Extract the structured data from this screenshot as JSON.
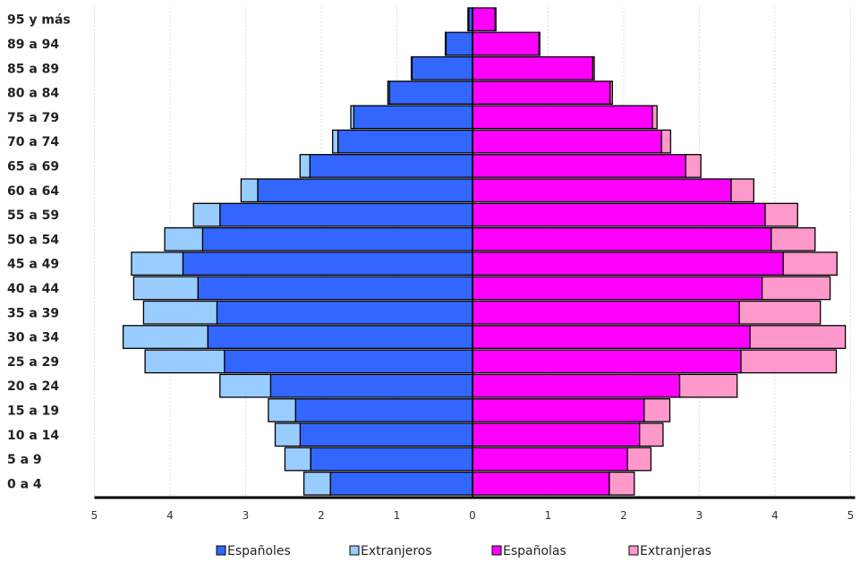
{
  "chart_data": {
    "type": "bar",
    "orientation": "horizontal-pyramid",
    "categories": [
      "0 a 4",
      "5 a 9",
      "10 a 14",
      "15 a 19",
      "20 a 24",
      "25 a 29",
      "30 a 34",
      "35 a 39",
      "40 a 44",
      "45 a 49",
      "50 a 54",
      "55 a 59",
      "60 a 64",
      "65 a 69",
      "70 a 74",
      "75 a 79",
      "80 a 84",
      "85 a 89",
      "89 a 94",
      "95 y más"
    ],
    "series": [
      {
        "name": "Españoles",
        "side": "left",
        "color": "#3366ff",
        "values": [
          1.88,
          2.14,
          2.28,
          2.34,
          2.67,
          3.28,
          3.5,
          3.38,
          3.63,
          3.83,
          3.57,
          3.34,
          2.84,
          2.15,
          1.78,
          1.57,
          1.1,
          0.8,
          0.35,
          0.05
        ]
      },
      {
        "name": "Extranjeros",
        "side": "left",
        "color": "#99ccff",
        "stacked_on": "Españoles",
        "values": [
          0.35,
          0.34,
          0.33,
          0.36,
          0.67,
          1.05,
          1.12,
          0.97,
          0.85,
          0.68,
          0.5,
          0.35,
          0.22,
          0.13,
          0.07,
          0.04,
          0.02,
          0.01,
          0.01,
          0.01
        ]
      },
      {
        "name": "Españolas",
        "side": "right",
        "color": "#ff00ff",
        "values": [
          1.81,
          2.05,
          2.21,
          2.27,
          2.74,
          3.55,
          3.67,
          3.53,
          3.83,
          4.11,
          3.95,
          3.87,
          3.42,
          2.82,
          2.5,
          2.38,
          1.82,
          1.59,
          0.88,
          0.3
        ]
      },
      {
        "name": "Extranjeras",
        "side": "right",
        "color": "#ff99cc",
        "stacked_on": "Españolas",
        "values": [
          0.33,
          0.31,
          0.31,
          0.34,
          0.76,
          1.26,
          1.26,
          1.07,
          0.9,
          0.71,
          0.58,
          0.43,
          0.3,
          0.2,
          0.12,
          0.06,
          0.03,
          0.02,
          0.01,
          0.01
        ]
      }
    ],
    "x_ticks": [
      5,
      4,
      3,
      2,
      1,
      0,
      1,
      2,
      3,
      4,
      5
    ],
    "xlim": [
      -5,
      5
    ],
    "grid": true,
    "legend_position": "bottom"
  }
}
